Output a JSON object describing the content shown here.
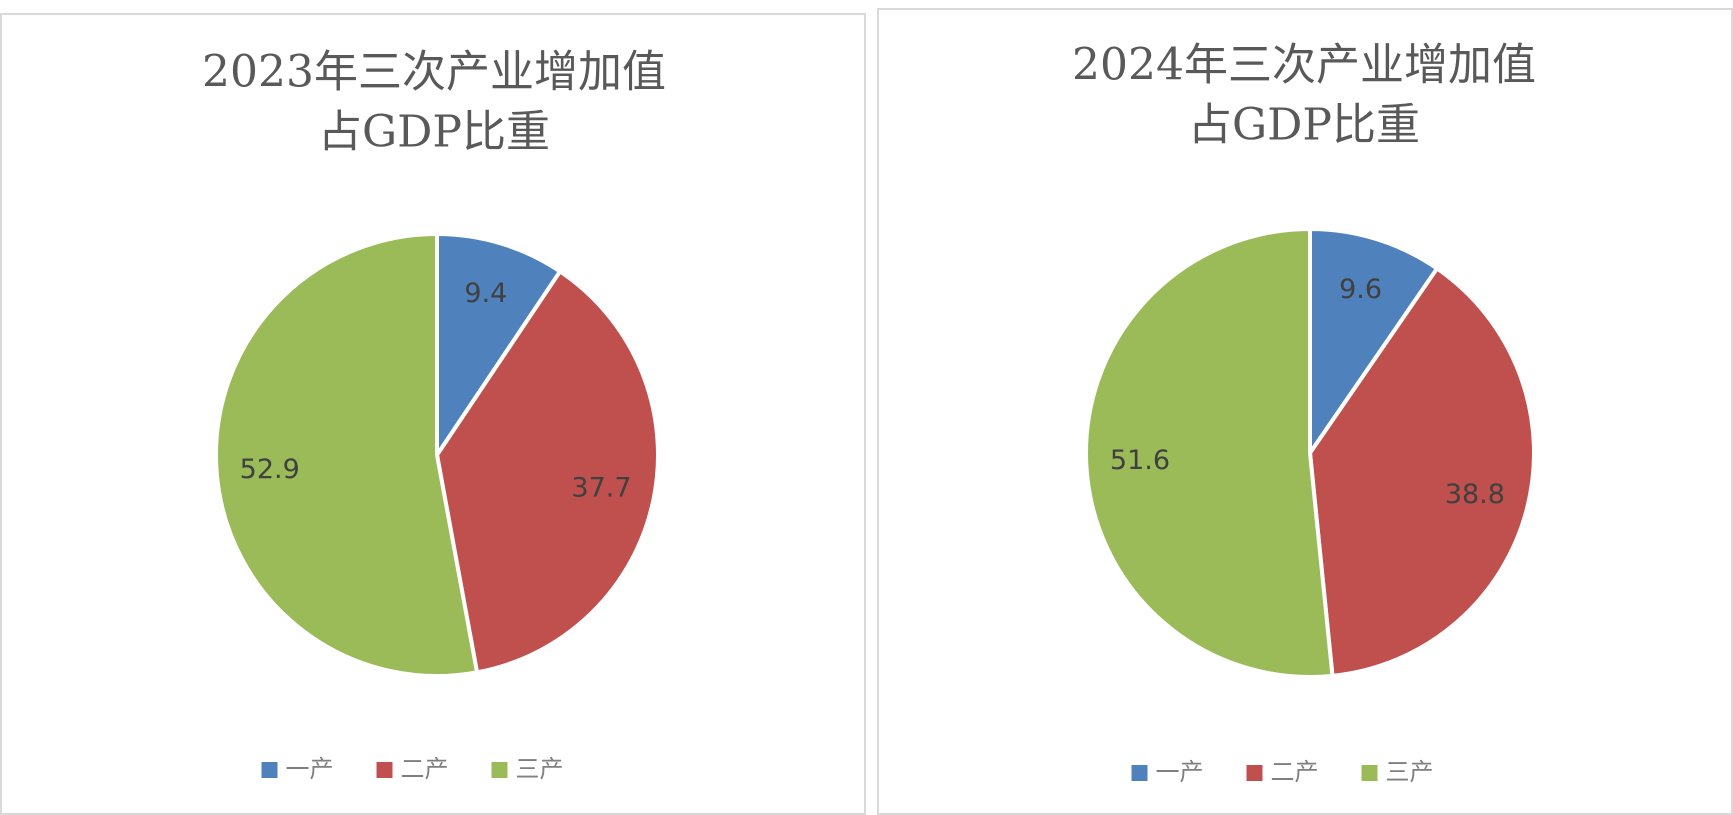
{
  "chart_data": [
    {
      "type": "pie",
      "title": [
        "2023年三次产业增加值",
        "占GDP比重"
      ],
      "categories": [
        "一产",
        "二产",
        "三产"
      ],
      "values": [
        9.4,
        37.7,
        52.9
      ],
      "colors": [
        "#4f81bd",
        "#c0504d",
        "#9bbb59"
      ],
      "legend": "bottom"
    },
    {
      "type": "pie",
      "title": [
        "2024年三次产业增加值",
        "占GDP比重"
      ],
      "categories": [
        "一产",
        "二产",
        "三产"
      ],
      "values": [
        9.6,
        38.8,
        51.6
      ],
      "colors": [
        "#4f81bd",
        "#c0504d",
        "#9bbb59"
      ],
      "legend": "bottom"
    }
  ]
}
